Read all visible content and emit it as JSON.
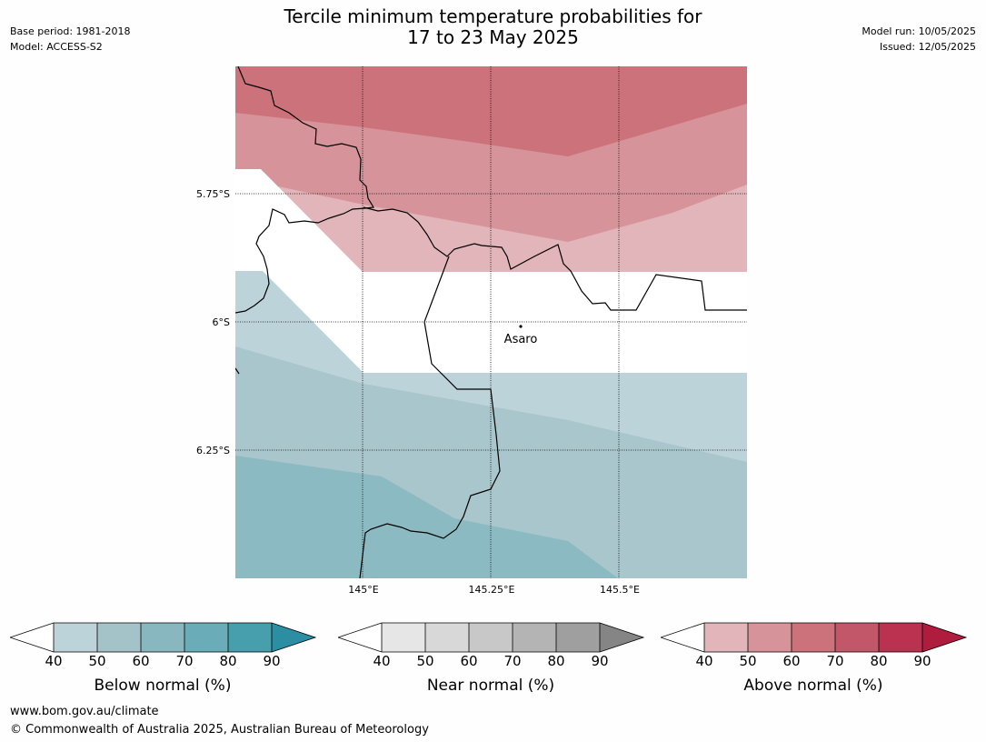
{
  "title_line1": "Tercile minimum temperature probabilities for",
  "title_line2": "17 to 23 May 2025",
  "meta_left": {
    "base_period": "Base period: 1981-2018",
    "model": "Model: ACCESS-S2"
  },
  "meta_right": {
    "model_run": "Model run: 10/05/2025",
    "issued": "Issued: 12/05/2025"
  },
  "map": {
    "lat_labels": [
      "5.75°S",
      "6°S",
      "6.25°S"
    ],
    "lon_labels": [
      "145°E",
      "145.25°E",
      "145.5°E"
    ],
    "place": "Asaro"
  },
  "colorbars": [
    {
      "label": "Below normal (%)",
      "ticks": [
        "40",
        "50",
        "60",
        "70",
        "80",
        "90"
      ],
      "colors": [
        "#bdd3da",
        "#a4c3c9",
        "#88b7c0",
        "#6aadb9",
        "#479fae",
        "#2c8ea2"
      ]
    },
    {
      "label": "Near normal (%)",
      "ticks": [
        "40",
        "50",
        "60",
        "70",
        "80",
        "90"
      ],
      "colors": [
        "#e6e6e6",
        "#d8d8d8",
        "#c8c8c8",
        "#b4b4b4",
        "#9f9f9f",
        "#858585"
      ]
    },
    {
      "label": "Above normal (%)",
      "ticks": [
        "40",
        "50",
        "60",
        "70",
        "80",
        "90"
      ],
      "colors": [
        "#e1b5b9",
        "#d7939a",
        "#cb727b",
        "#c3576a",
        "#bb3150",
        "#b01c3e"
      ]
    }
  ],
  "footer": {
    "website": "www.bom.gov.au/climate",
    "copyright": "© Commonwealth of Australia 2025, Australian Bureau of Meteorology"
  }
}
